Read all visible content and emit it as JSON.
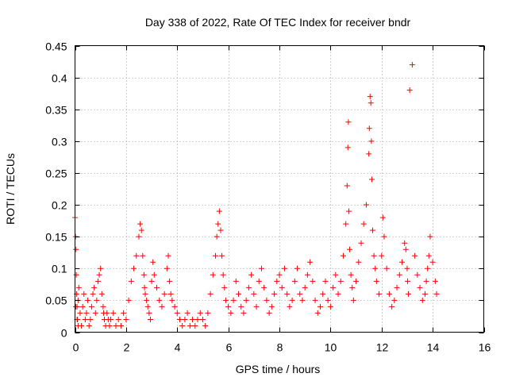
{
  "chart_data": {
    "type": "scatter",
    "title": "Day 338 of 2022, Rate Of TEC Index for receiver bndr",
    "xlabel": "GPS time / hours",
    "ylabel": "ROTI / TECUs",
    "xlim": [
      0,
      16
    ],
    "ylim": [
      0,
      0.45
    ],
    "x_ticks": [
      0,
      2,
      4,
      6,
      8,
      10,
      12,
      14,
      16
    ],
    "y_ticks": [
      0,
      0.05,
      0.1,
      0.15,
      0.2,
      0.25,
      0.3,
      0.35,
      0.4,
      0.45
    ],
    "x_tick_labels": [
      "0",
      "2",
      "4",
      "6",
      "8",
      "10",
      "12",
      "14",
      "16"
    ],
    "y_tick_labels": [
      "0",
      "0.05",
      "0.1",
      "0.15",
      "0.2",
      "0.25",
      "0.3",
      "0.35",
      "0.4",
      "0.45"
    ],
    "grid": true,
    "marker": "+",
    "series_color": "#ff0000",
    "series": [
      {
        "name": "ROTI",
        "x": [
          0.0,
          0.02,
          0.04,
          0.05,
          0.06,
          0.08,
          0.1,
          0.12,
          0.15,
          0.2,
          0.25,
          0.3,
          0.35,
          0.4,
          0.45,
          0.5,
          0.55,
          0.6,
          0.65,
          0.7,
          0.75,
          0.8,
          0.85,
          0.9,
          0.95,
          1.0,
          1.05,
          1.1,
          1.12,
          1.15,
          1.2,
          1.25,
          1.3,
          1.35,
          1.4,
          1.5,
          1.6,
          1.7,
          1.8,
          1.9,
          2.0,
          2.1,
          2.2,
          2.3,
          2.4,
          2.5,
          2.55,
          2.6,
          2.65,
          2.7,
          2.72,
          2.75,
          2.8,
          2.85,
          2.9,
          2.95,
          3.0,
          3.05,
          3.1,
          3.2,
          3.3,
          3.4,
          3.5,
          3.6,
          3.65,
          3.7,
          3.75,
          3.8,
          3.9,
          4.0,
          4.1,
          4.2,
          4.3,
          4.4,
          4.5,
          4.6,
          4.7,
          4.8,
          4.9,
          5.0,
          5.1,
          5.2,
          5.3,
          5.4,
          5.5,
          5.55,
          5.6,
          5.65,
          5.7,
          5.75,
          5.8,
          5.85,
          5.9,
          6.0,
          6.1,
          6.2,
          6.3,
          6.4,
          6.5,
          6.6,
          6.7,
          6.8,
          6.9,
          7.0,
          7.1,
          7.2,
          7.3,
          7.4,
          7.5,
          7.6,
          7.7,
          7.8,
          7.9,
          8.0,
          8.1,
          8.2,
          8.3,
          8.4,
          8.5,
          8.6,
          8.7,
          8.8,
          8.9,
          9.0,
          9.1,
          9.2,
          9.3,
          9.4,
          9.5,
          9.6,
          9.7,
          9.8,
          9.9,
          10.0,
          10.1,
          10.2,
          10.3,
          10.4,
          10.5,
          10.6,
          10.65,
          10.68,
          10.7,
          10.72,
          10.75,
          10.8,
          10.85,
          10.9,
          11.0,
          11.1,
          11.2,
          11.3,
          11.4,
          11.5,
          11.52,
          11.55,
          11.58,
          11.6,
          11.62,
          11.65,
          11.7,
          11.75,
          11.8,
          11.9,
          12.0,
          12.05,
          12.1,
          12.2,
          12.3,
          12.4,
          12.5,
          12.6,
          12.7,
          12.8,
          12.9,
          12.95,
          13.0,
          13.02,
          13.05,
          13.1,
          13.2,
          13.3,
          13.4,
          13.5,
          13.6,
          13.7,
          13.75,
          13.8,
          13.85,
          13.9,
          14.0,
          14.1,
          14.15,
          0.03,
          0.08,
          0.12,
          0.18,
          0.15,
          0.13,
          0.09,
          0.06,
          0.04,
          0.02,
          0.05,
          0.07,
          0.03,
          0.01,
          0.04,
          0.06,
          0.02,
          0.03,
          0.05,
          0.01,
          0.02,
          0.04,
          0.06,
          0.07,
          0.03,
          0.05,
          0.08,
          0.09,
          0.1,
          0.06,
          0.04,
          0.03,
          0.02,
          0.01,
          0.03,
          0.02,
          0.01,
          0.02,
          0.03,
          0.01,
          0.02,
          0.01,
          0.03,
          0.02,
          0.05,
          0.08,
          0.1,
          0.12,
          0.15,
          0.17,
          0.16,
          0.12,
          0.09,
          0.07,
          0.06,
          0.05,
          0.04,
          0.03,
          0.02,
          0.08,
          0.11,
          0.09,
          0.07,
          0.05,
          0.04,
          0.06,
          0.1,
          0.12,
          0.08,
          0.06,
          0.05,
          0.04,
          0.03,
          0.02,
          0.01,
          0.02,
          0.03,
          0.01,
          0.02,
          0.01,
          0.02,
          0.03,
          0.02,
          0.01,
          0.03,
          0.06,
          0.09,
          0.12,
          0.15,
          0.17,
          0.19,
          0.16,
          0.12,
          0.09,
          0.07,
          0.05,
          0.04,
          0.03,
          0.05,
          0.08,
          0.06,
          0.04,
          0.03,
          0.05,
          0.07,
          0.09,
          0.06,
          0.04,
          0.08,
          0.1,
          0.07,
          0.05,
          0.03,
          0.04,
          0.06,
          0.08,
          0.09,
          0.07,
          0.1,
          0.06,
          0.04,
          0.05,
          0.08,
          0.1,
          0.06,
          0.05,
          0.07,
          0.09,
          0.11,
          0.08,
          0.05,
          0.03,
          0.04,
          0.06,
          0.08,
          0.05,
          0.04,
          0.07,
          0.09,
          0.06,
          0.08,
          0.12,
          0.17,
          0.23,
          0.29,
          0.33,
          0.19,
          0.13,
          0.09,
          0.07,
          0.05,
          0.08,
          0.11,
          0.14,
          0.17,
          0.2,
          0.28,
          0.32,
          0.37,
          0.36,
          0.3,
          0.24,
          0.16,
          0.12,
          0.1,
          0.08,
          0.06,
          0.12,
          0.18,
          0.15,
          0.1,
          0.06,
          0.04,
          0.05,
          0.07,
          0.09,
          0.11,
          0.14,
          0.13,
          0.1,
          0.08,
          0.06,
          0.38,
          0.42,
          0.12,
          0.09,
          0.07,
          0.05,
          0.06,
          0.08,
          0.1,
          0.12,
          0.15,
          0.11,
          0.08,
          0.06,
          0.04,
          0.02,
          0.01
        ]
      }
    ]
  }
}
